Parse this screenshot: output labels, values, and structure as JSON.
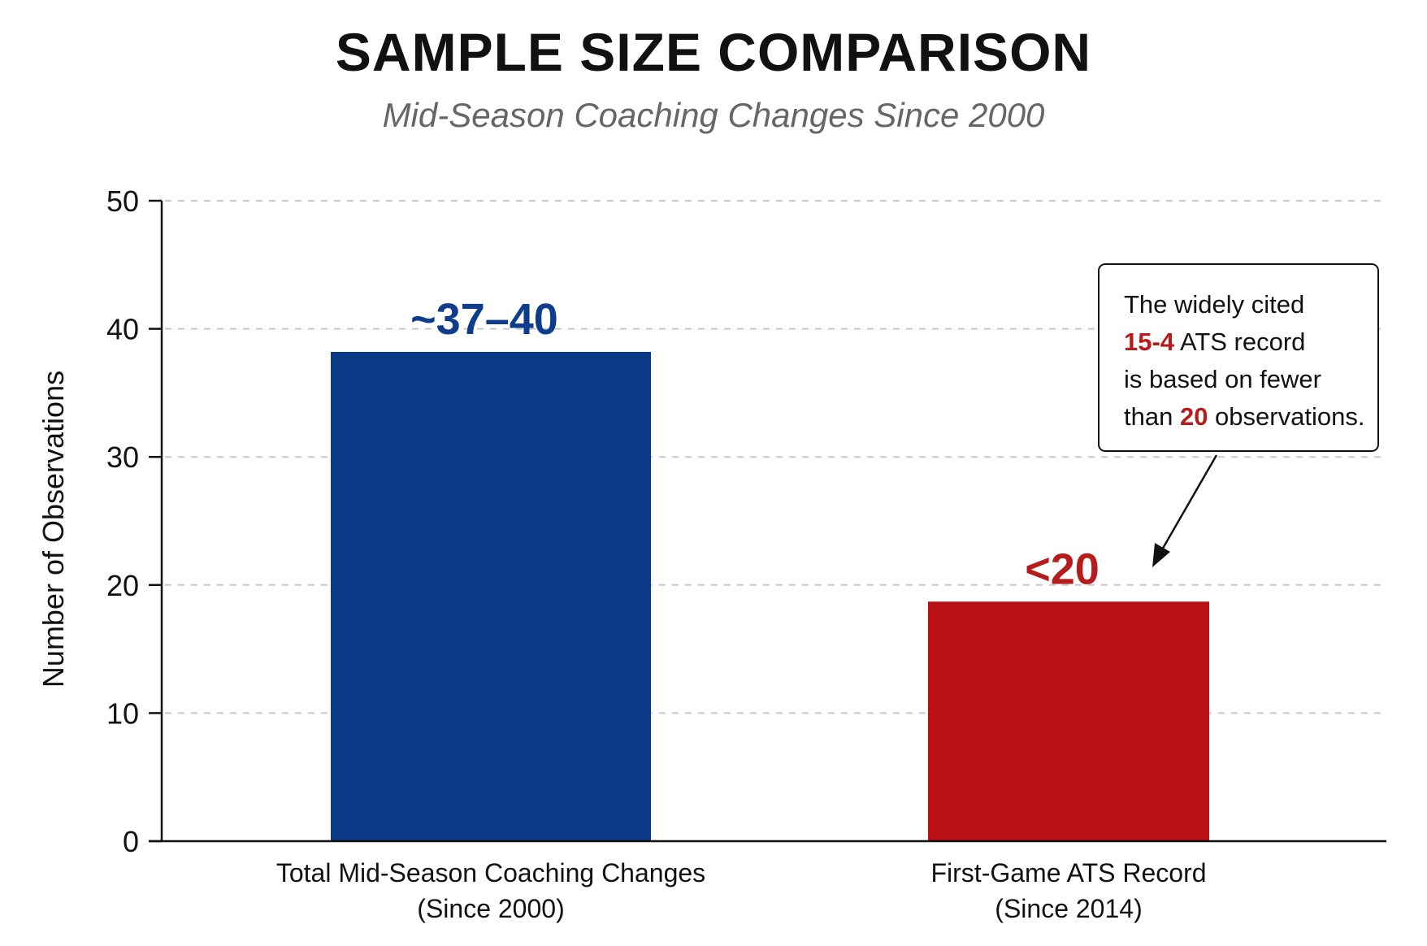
{
  "colors": {
    "primary_bar": "#0a3a86",
    "secondary_bar": "#b81015",
    "primary_label": "#0d3d8c",
    "highlight": "#b71c1c",
    "grid": "#c8c8c8",
    "axis": "#111111"
  },
  "annotation": {
    "line1": "The widely cited",
    "line2_highlight": "15-4",
    "line2_rest": " ATS record",
    "line3": "is based on fewer",
    "line4_prefix": "than ",
    "line4_highlight": "20",
    "line4_rest": " observations."
  },
  "chart_data": {
    "type": "bar",
    "title": "SAMPLE SIZE COMPARISON",
    "subtitle": "Mid-Season Coaching Changes Since 2000",
    "xlabel": "",
    "ylabel": "Number of Observations",
    "ylim": [
      0,
      50
    ],
    "yticks": [
      0,
      10,
      20,
      30,
      40,
      50
    ],
    "grid": true,
    "categories": [
      [
        "Total Mid-Season Coaching Changes",
        "(Since 2000)"
      ],
      [
        "First-Game ATS Record",
        "(Since 2014)"
      ]
    ],
    "values": [
      38.2,
      18.7
    ],
    "data_labels": [
      "~37–40",
      "<20"
    ],
    "bar_colors": [
      "#0a3a86",
      "#b81015"
    ],
    "label_colors": [
      "#0d3d8c",
      "#b71c1c"
    ]
  }
}
